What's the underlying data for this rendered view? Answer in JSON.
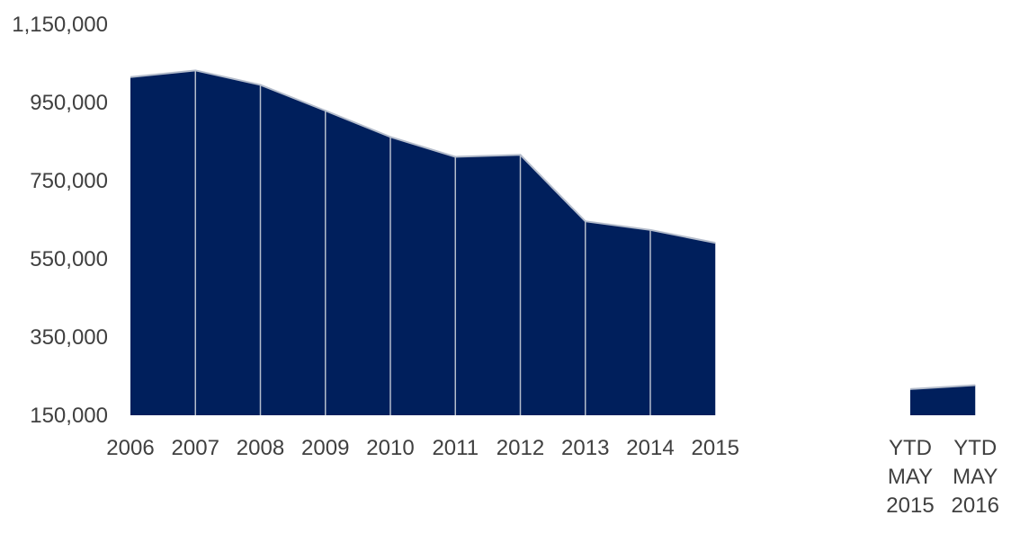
{
  "chart_data": {
    "type": "area",
    "title": "",
    "xlabel": "",
    "ylabel": "",
    "ylim": [
      150000,
      1150000
    ],
    "yticks": [
      150000,
      350000,
      550000,
      750000,
      950000,
      1150000
    ],
    "ytick_labels": [
      "150,000",
      "350,000",
      "550,000",
      "750,000",
      "950,000",
      "1,150,000"
    ],
    "grid": false,
    "legend": "none",
    "series": [
      {
        "x": [
          "2006",
          "2007",
          "2008",
          "2009",
          "2010",
          "2011",
          "2012",
          "2013",
          "2014",
          "2015"
        ],
        "values": [
          1015000,
          1032000,
          995000,
          929000,
          862000,
          811000,
          816000,
          646000,
          624000,
          591000
        ]
      },
      {
        "x": [
          "YTD MAY 2015",
          "YTD MAY 2016"
        ],
        "x_label_lines": [
          [
            "YTD",
            "MAY",
            "2015"
          ],
          [
            "YTD",
            "MAY",
            "2016"
          ]
        ],
        "values": [
          217000,
          227000
        ]
      }
    ],
    "colors": {
      "fill": "#001f5c",
      "stroke": "#b4bccb",
      "text": "#404040"
    }
  }
}
